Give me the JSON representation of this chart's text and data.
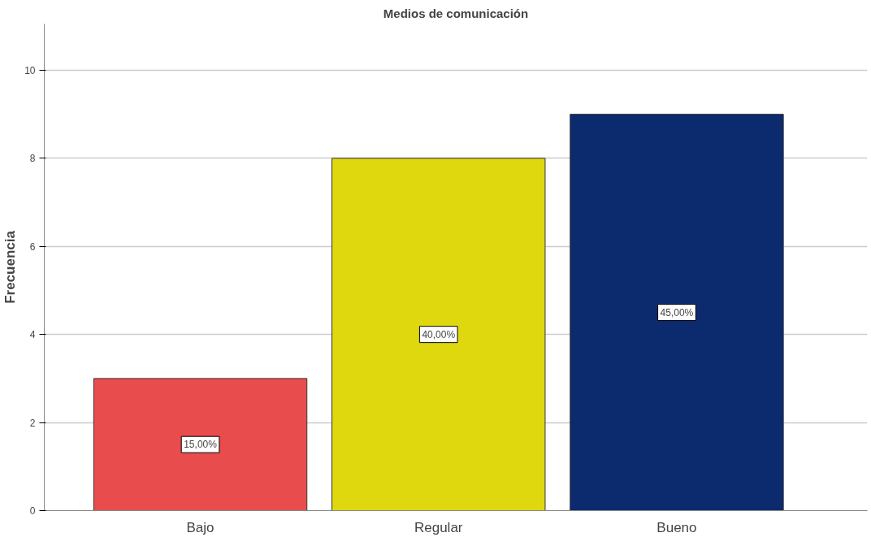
{
  "chart_data": {
    "type": "bar",
    "title": "Medios de comunicación",
    "ylabel": "Frecuencia",
    "categories": [
      "Bajo",
      "Regular",
      "Bueno"
    ],
    "values": [
      3,
      8,
      9
    ],
    "colors": [
      "#e84c4c",
      "#e0d80f",
      "#0c2a6e"
    ],
    "annotations": [
      "15,00%",
      "40,00%",
      "45,00%"
    ],
    "ylim": [
      0,
      11.05
    ],
    "yticks": [
      0,
      2,
      4,
      6,
      8,
      10
    ],
    "grid": "y"
  }
}
